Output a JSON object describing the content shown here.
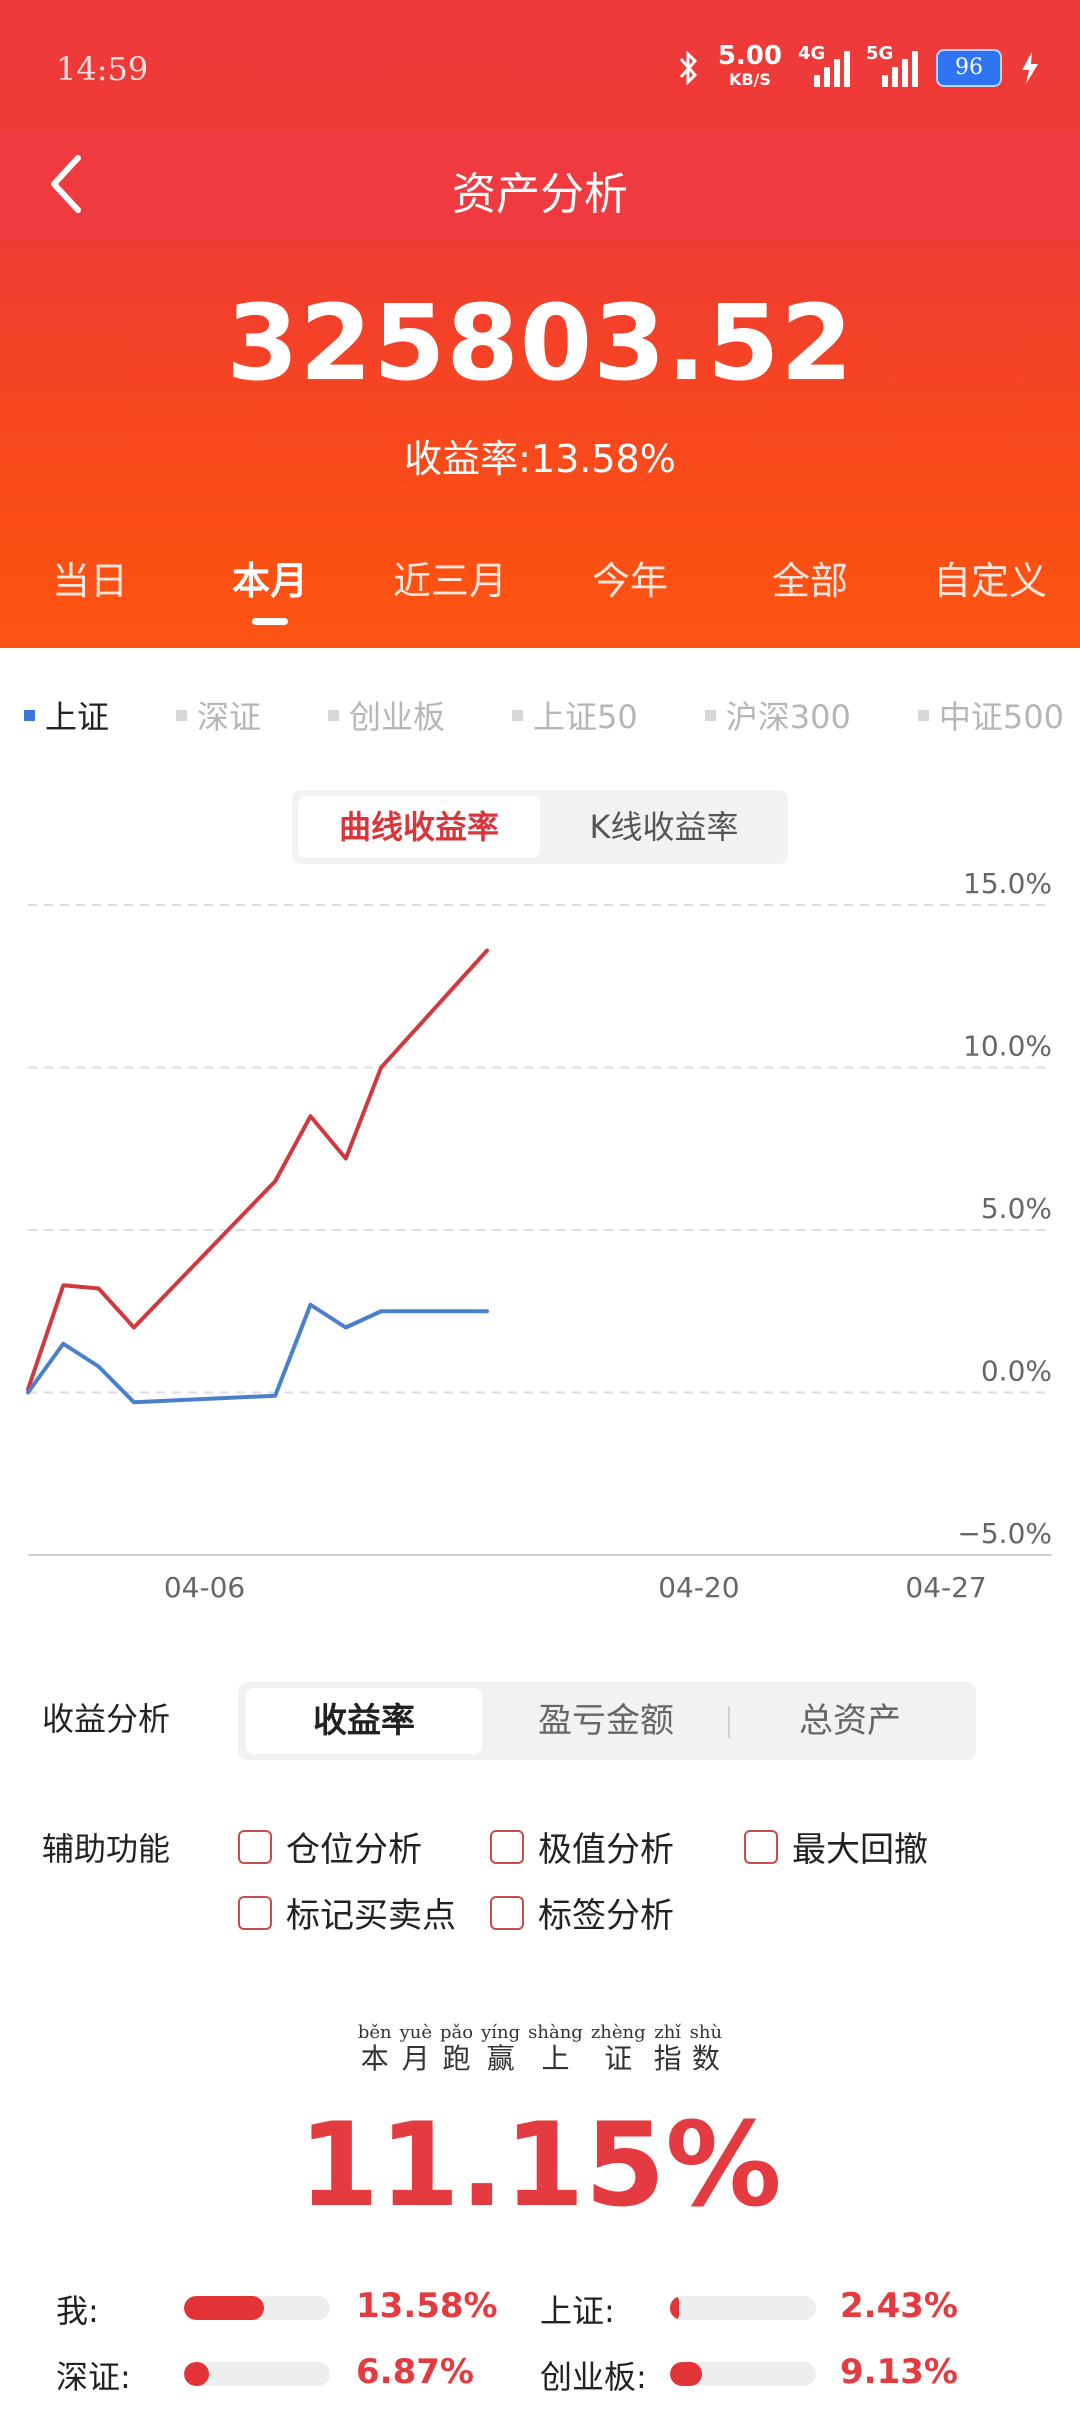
{
  "status_bar": {
    "time": "14:59",
    "speed_value": "5.00",
    "speed_unit": "KB/S",
    "net1": "4G",
    "net2": "5G",
    "battery": "96"
  },
  "nav": {
    "title": "资产分析"
  },
  "summary": {
    "total_assets": "325803.52",
    "yield_text": "收益率:13.58%"
  },
  "period_tabs": [
    {
      "label": "当日",
      "active": false
    },
    {
      "label": "本月",
      "active": true
    },
    {
      "label": "近三月",
      "active": false
    },
    {
      "label": "今年",
      "active": false
    },
    {
      "label": "全部",
      "active": false
    },
    {
      "label": "自定义",
      "active": false
    }
  ],
  "index_tabs": [
    {
      "label": "上证",
      "active": true
    },
    {
      "label": "深证",
      "active": false
    },
    {
      "label": "创业板",
      "active": false
    },
    {
      "label": "上证50",
      "active": false
    },
    {
      "label": "沪深300",
      "active": false
    },
    {
      "label": "中证500",
      "active": false
    }
  ],
  "chart_toggle": {
    "active": "曲线收益率",
    "other": "K线收益率"
  },
  "chart_data": {
    "type": "line",
    "title": "",
    "xlabel": "",
    "ylabel": "",
    "ylim": [
      -5,
      15
    ],
    "yticks": [
      "15.0%",
      "10.0%",
      "5.0%",
      "0.0%",
      "−5.0%"
    ],
    "ytick_values": [
      15,
      10,
      5,
      0,
      -5
    ],
    "xticks": [
      "04-06",
      "04-20",
      "04-27"
    ],
    "xtick_values": [
      6,
      20,
      27
    ],
    "xlim": [
      1,
      30
    ],
    "grid": true,
    "series": [
      {
        "color": "#d0393e",
        "x": [
          1,
          2,
          3,
          4,
          8,
          9,
          10,
          11,
          14
        ],
        "y": [
          0.1,
          3.3,
          3.2,
          2.0,
          6.5,
          8.5,
          7.2,
          10.0,
          13.6
        ]
      },
      {
        "color": "#4a7fcc",
        "x": [
          1,
          2,
          3,
          4,
          8,
          9,
          10,
          11,
          14
        ],
        "y": [
          0.0,
          1.5,
          0.8,
          -0.3,
          -0.1,
          2.7,
          2.0,
          2.5,
          2.5
        ]
      }
    ]
  },
  "analysis": {
    "label": "收益分析",
    "segments": [
      "收益率",
      "盈亏金额",
      "总资产"
    ]
  },
  "aux": {
    "label": "辅助功能",
    "options": [
      "仓位分析",
      "极值分析",
      "最大回撤",
      "标记买卖点",
      "标签分析"
    ]
  },
  "beat": {
    "chars": [
      {
        "c": "本",
        "p": "běn"
      },
      {
        "c": "月",
        "p": "yuè"
      },
      {
        "c": "跑",
        "p": "pǎo"
      },
      {
        "c": "赢",
        "p": "yíng"
      },
      {
        "c": "上",
        "p": "shàng"
      },
      {
        "c": "证",
        "p": "zhèng"
      },
      {
        "c": "指",
        "p": "zhǐ"
      },
      {
        "c": "数",
        "p": "shù"
      }
    ],
    "value": "11.15%"
  },
  "compare": [
    {
      "name": "我:",
      "value": "13.58%",
      "fraction": 0.55
    },
    {
      "name": "上证:",
      "value": "2.43%",
      "fraction": 0.06
    },
    {
      "name": "深证:",
      "value": "6.87%",
      "fraction": 0.17
    },
    {
      "name": "创业板:",
      "value": "9.13%",
      "fraction": 0.22
    }
  ],
  "colors": {
    "brand_red": "#ef3a40",
    "accent_orange": "#fc5512",
    "index_blue": "#3b76d8"
  }
}
